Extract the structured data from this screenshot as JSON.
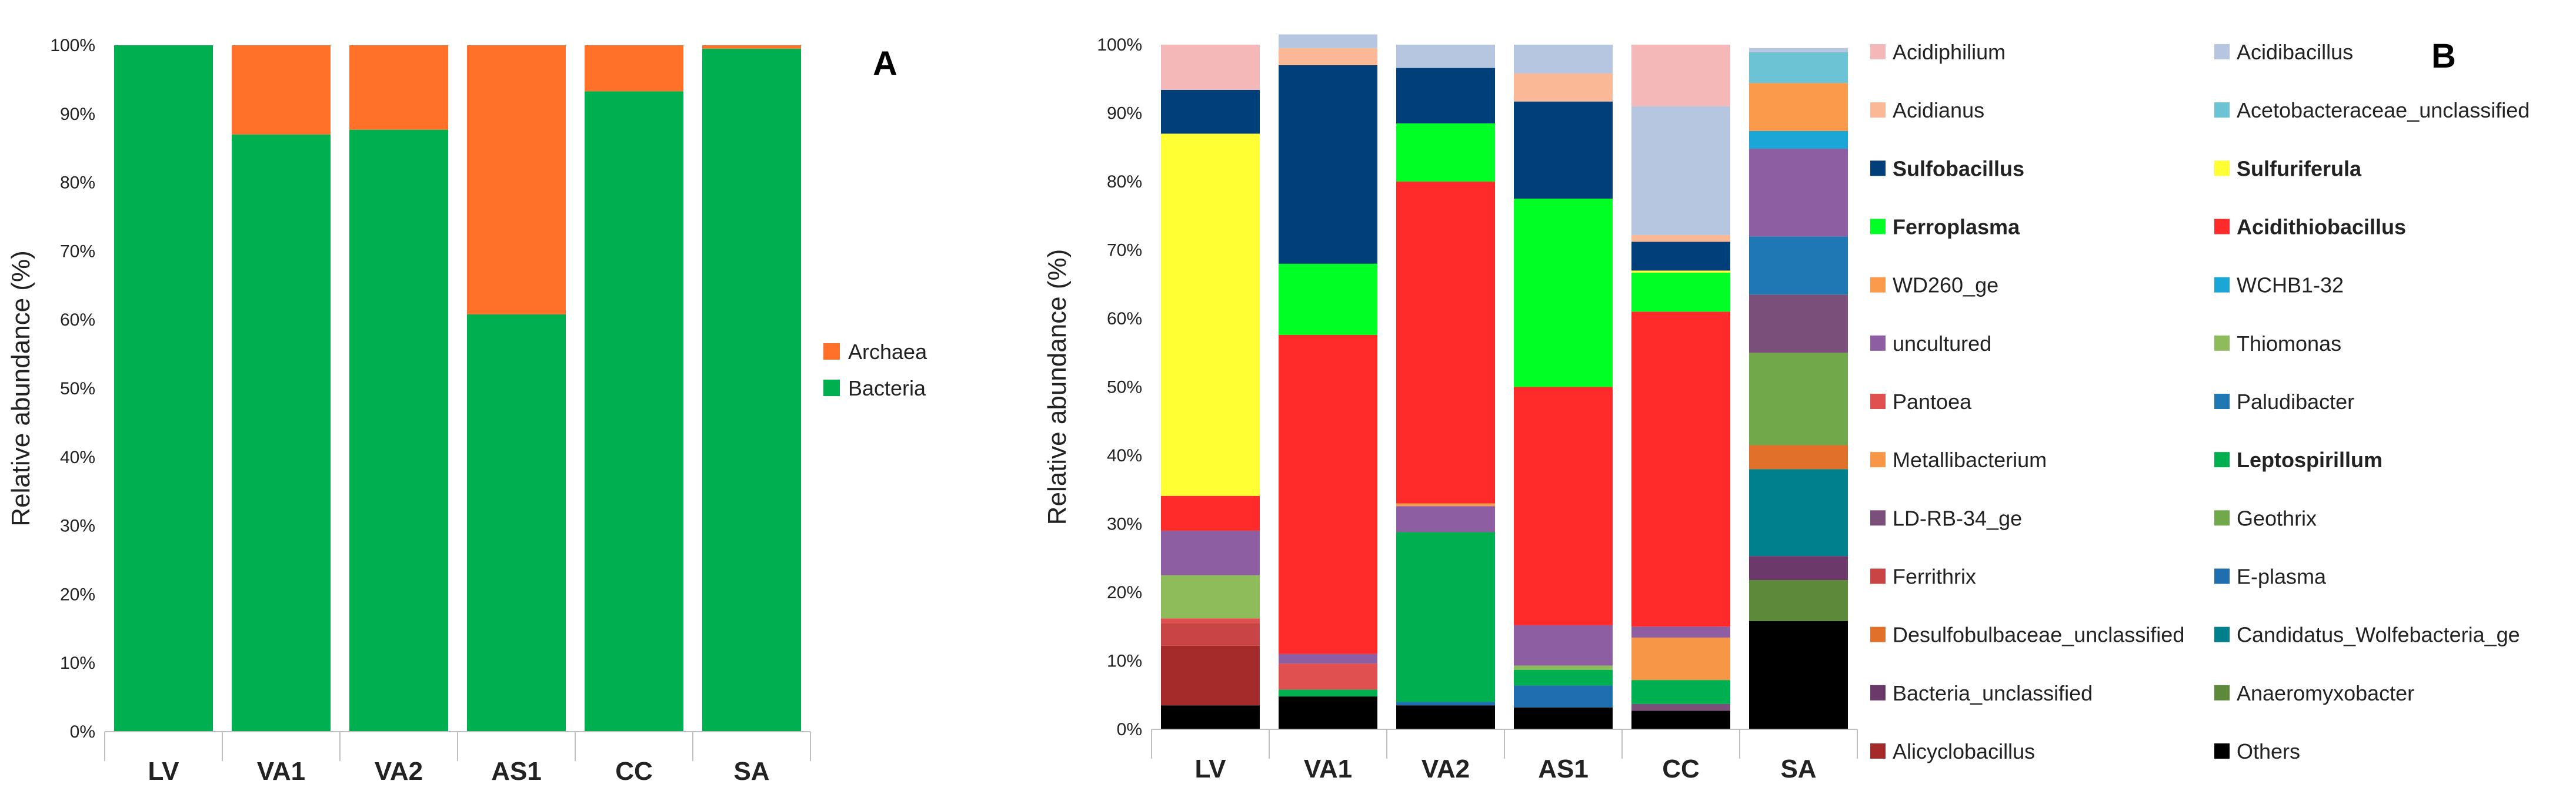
{
  "chart_data": [
    {
      "panel": "A",
      "type": "bar",
      "stacked": true,
      "ylabel": "Relative abundance (%)",
      "ylim": [
        0,
        100
      ],
      "yticks": [
        "0%",
        "10%",
        "20%",
        "30%",
        "40%",
        "50%",
        "60%",
        "70%",
        "80%",
        "90%",
        "100%"
      ],
      "categories": [
        "LV",
        "VA1",
        "VA2",
        "AS1",
        "CC",
        "SA"
      ],
      "series": [
        {
          "name": "Bacteria",
          "color": "#00b050",
          "values": [
            100,
            87.0,
            87.7,
            60.8,
            93.3,
            99.5
          ]
        },
        {
          "name": "Archaea",
          "color": "#ff7028",
          "values": [
            0,
            13.0,
            12.3,
            39.2,
            6.7,
            0.5
          ]
        }
      ],
      "legend": [
        {
          "name": "Archaea",
          "color": "#ff7028"
        },
        {
          "name": "Bacteria",
          "color": "#00b050"
        }
      ]
    },
    {
      "panel": "B",
      "type": "bar",
      "stacked": true,
      "ylabel": "Relative abundance (%)",
      "ylim": [
        0,
        100
      ],
      "yticks": [
        "0%",
        "10%",
        "20%",
        "30%",
        "40%",
        "50%",
        "60%",
        "70%",
        "80%",
        "90%",
        "100%"
      ],
      "categories": [
        "LV",
        "VA1",
        "VA2",
        "AS1",
        "CC",
        "SA"
      ],
      "series": [
        {
          "name": "Others",
          "color": "#000000",
          "values": [
            3.5,
            4.8,
            3.5,
            3.2,
            2.7,
            15.8
          ]
        },
        {
          "name": "Alicyclobacillus",
          "color": "#a52a2a",
          "values": [
            8.7,
            0,
            0,
            0,
            0,
            0
          ]
        },
        {
          "name": "Anaeromyxobacter",
          "color": "#5c8a3a",
          "values": [
            0,
            0,
            0,
            0,
            0,
            6.0
          ]
        },
        {
          "name": "Bacteria_unclassified",
          "color": "#6b3a6b",
          "values": [
            0,
            0,
            0,
            0,
            0,
            3.5
          ]
        },
        {
          "name": "Candidatus_Wolfebacteria_ge",
          "color": "#00808c",
          "values": [
            0,
            0,
            0,
            0,
            0,
            12.7
          ]
        },
        {
          "name": "Desulfobulbaceae_unclassified",
          "color": "#e0702a",
          "values": [
            0,
            0,
            0,
            0,
            0,
            3.5
          ]
        },
        {
          "name": "E-plasma",
          "color": "#1f6fb0",
          "values": [
            0,
            0,
            0.5,
            3.2,
            0,
            0
          ]
        },
        {
          "name": "Ferrithrix",
          "color": "#c94444",
          "values": [
            3.3,
            0,
            0,
            0,
            0,
            0
          ]
        },
        {
          "name": "Geothrix",
          "color": "#70a84a",
          "values": [
            0,
            0,
            0,
            0,
            0,
            13.5
          ]
        },
        {
          "name": "LD-RB-34_ge",
          "color": "#7a4f7a",
          "values": [
            0,
            0,
            0,
            0,
            1.0,
            8.5
          ]
        },
        {
          "name": "Leptospirillum",
          "color": "#00b050",
          "values": [
            0,
            1.0,
            24.8,
            2.3,
            3.5,
            0
          ]
        },
        {
          "name": "Metallibacterium",
          "color": "#f79646",
          "values": [
            0,
            0,
            0,
            0,
            6.2,
            0
          ]
        },
        {
          "name": "Paludibacter",
          "color": "#1f77b4",
          "values": [
            0,
            0,
            0,
            0,
            0,
            8.5
          ]
        },
        {
          "name": "Pantoea",
          "color": "#e05050",
          "values": [
            0.7,
            3.8,
            0,
            0,
            0,
            0
          ]
        },
        {
          "name": "Thiomonas",
          "color": "#8fbc5a",
          "values": [
            6.3,
            0,
            0,
            0.6,
            0,
            0
          ]
        },
        {
          "name": "uncultured",
          "color": "#8e5ea2",
          "values": [
            6.5,
            1.4,
            3.8,
            5.9,
            1.6,
            12.8
          ]
        },
        {
          "name": "WCHB1-32",
          "color": "#1ba6d8",
          "values": [
            0,
            0,
            0,
            0,
            0,
            2.6
          ]
        },
        {
          "name": "WD260_ge",
          "color": "#fb9a4a",
          "values": [
            0,
            0,
            0.4,
            0,
            0,
            7.0
          ]
        },
        {
          "name": "Acidithiobacillus",
          "color": "#ff2a2a",
          "values": [
            5.1,
            46.6,
            47.0,
            34.8,
            46.0,
            0
          ]
        },
        {
          "name": "Ferroplasma",
          "color": "#00ff24",
          "values": [
            0,
            10.4,
            8.5,
            27.5,
            5.7,
            0
          ]
        },
        {
          "name": "Sulfuriferula",
          "color": "#ffff33",
          "values": [
            52.9,
            0,
            0,
            0,
            0.3,
            0
          ]
        },
        {
          "name": "Sulfobacillus",
          "color": "#003f7a",
          "values": [
            6.4,
            29.0,
            8.1,
            14.2,
            4.2,
            0
          ]
        },
        {
          "name": "Acetobacteraceae_unclassified",
          "color": "#6bc3d4",
          "values": [
            0,
            0,
            0,
            0,
            0,
            4.5
          ]
        },
        {
          "name": "Acidianus",
          "color": "#fbb896",
          "values": [
            0,
            2.5,
            0,
            4.1,
            1.0,
            0
          ]
        },
        {
          "name": "Acidibacillus",
          "color": "#b7c6e0",
          "values": [
            0,
            2.0,
            3.4,
            4.2,
            18.8,
            0.6
          ]
        },
        {
          "name": "Acidiphilium",
          "color": "#f4b8b8",
          "values": [
            6.6,
            0,
            0,
            0,
            9.0,
            0
          ]
        }
      ],
      "legend": [
        {
          "name": "Acidiphilium",
          "color": "#f4b8b8",
          "bold": false
        },
        {
          "name": "Acidibacillus",
          "color": "#b7c6e0",
          "bold": false
        },
        {
          "name": "Acidianus",
          "color": "#fbb896",
          "bold": false
        },
        {
          "name": "Acetobacteraceae_unclassified",
          "color": "#6bc3d4",
          "bold": false
        },
        {
          "name": "Sulfobacillus",
          "color": "#003f7a",
          "bold": true
        },
        {
          "name": "Sulfuriferula",
          "color": "#ffff33",
          "bold": true
        },
        {
          "name": "Ferroplasma",
          "color": "#00ff24",
          "bold": true
        },
        {
          "name": "Acidithiobacillus",
          "color": "#ff2a2a",
          "bold": true
        },
        {
          "name": "WD260_ge",
          "color": "#fb9a4a",
          "bold": false
        },
        {
          "name": "WCHB1-32",
          "color": "#1ba6d8",
          "bold": false
        },
        {
          "name": "uncultured",
          "color": "#8e5ea2",
          "bold": false
        },
        {
          "name": "Thiomonas",
          "color": "#8fbc5a",
          "bold": false
        },
        {
          "name": "Pantoea",
          "color": "#e05050",
          "bold": false
        },
        {
          "name": "Paludibacter",
          "color": "#1f77b4",
          "bold": false
        },
        {
          "name": "Metallibacterium",
          "color": "#f79646",
          "bold": false
        },
        {
          "name": "Leptospirillum",
          "color": "#00b050",
          "bold": true
        },
        {
          "name": "LD-RB-34_ge",
          "color": "#7a4f7a",
          "bold": false
        },
        {
          "name": "Geothrix",
          "color": "#70a84a",
          "bold": false
        },
        {
          "name": "Ferrithrix",
          "color": "#c94444",
          "bold": false
        },
        {
          "name": "E-plasma",
          "color": "#1f6fb0",
          "bold": false
        },
        {
          "name": "Desulfobulbaceae_unclassified",
          "color": "#e0702a",
          "bold": false
        },
        {
          "name": "Candidatus_Wolfebacteria_ge",
          "color": "#00808c",
          "bold": false
        },
        {
          "name": "Bacteria_unclassified",
          "color": "#6b3a6b",
          "bold": false
        },
        {
          "name": "Anaeromyxobacter",
          "color": "#5c8a3a",
          "bold": false
        },
        {
          "name": "Alicyclobacillus",
          "color": "#a52a2a",
          "bold": false
        },
        {
          "name": "Others",
          "color": "#000000",
          "bold": false
        }
      ]
    }
  ]
}
